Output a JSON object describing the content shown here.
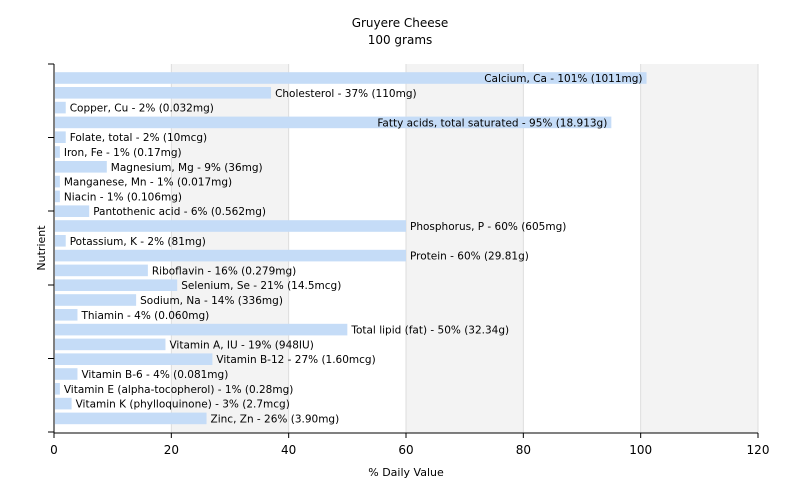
{
  "chart_data": {
    "type": "bar",
    "orientation": "horizontal",
    "title": "Gruyere Cheese",
    "subtitle": "100 grams",
    "xlabel": "% Daily Value",
    "ylabel": "Nutrient",
    "xlim": [
      0,
      120
    ],
    "xticks": [
      0,
      20,
      40,
      60,
      80,
      100,
      120
    ],
    "grid": true,
    "colors": {
      "bar": "#c5dcf7",
      "background_band": "#f3f3f3",
      "grid": "#dddddd",
      "axis": "#000000"
    },
    "categories": [
      "Calcium, Ca",
      "Cholesterol",
      "Copper, Cu",
      "Fatty acids, total saturated",
      "Folate, total",
      "Iron, Fe",
      "Magnesium, Mg",
      "Manganese, Mn",
      "Niacin",
      "Pantothenic acid",
      "Phosphorus, P",
      "Potassium, K",
      "Protein",
      "Riboflavin",
      "Selenium, Se",
      "Sodium, Na",
      "Thiamin",
      "Total lipid (fat)",
      "Vitamin A, IU",
      "Vitamin B-12",
      "Vitamin B-6",
      "Vitamin E (alpha-tocopherol)",
      "Vitamin K (phylloquinone)",
      "Zinc, Zn"
    ],
    "values": [
      101,
      37,
      2,
      95,
      2,
      1,
      9,
      1,
      1,
      6,
      60,
      2,
      60,
      16,
      21,
      14,
      4,
      50,
      19,
      27,
      4,
      1,
      3,
      26
    ],
    "labels": [
      "Calcium, Ca - 101% (1011mg)",
      "Cholesterol - 37% (110mg)",
      "Copper, Cu - 2% (0.032mg)",
      "Fatty acids, total saturated - 95% (18.913g)",
      "Folate, total - 2% (10mcg)",
      "Iron, Fe - 1% (0.17mg)",
      "Magnesium, Mg - 9% (36mg)",
      "Manganese, Mn - 1% (0.017mg)",
      "Niacin - 1% (0.106mg)",
      "Pantothenic acid - 6% (0.562mg)",
      "Phosphorus, P - 60% (605mg)",
      "Potassium, K - 2% (81mg)",
      "Protein - 60% (29.81g)",
      "Riboflavin - 16% (0.279mg)",
      "Selenium, Se - 21% (14.5mcg)",
      "Sodium, Na - 14% (336mg)",
      "Thiamin - 4% (0.060mg)",
      "Total lipid (fat) - 50% (32.34g)",
      "Vitamin A, IU - 19% (948IU)",
      "Vitamin B-12 - 27% (1.60mcg)",
      "Vitamin B-6 - 4% (0.081mg)",
      "Vitamin E (alpha-tocopherol) - 1% (0.28mg)",
      "Vitamin K (phylloquinone) - 3% (2.7mcg)",
      "Zinc, Zn - 26% (3.90mg)"
    ]
  }
}
